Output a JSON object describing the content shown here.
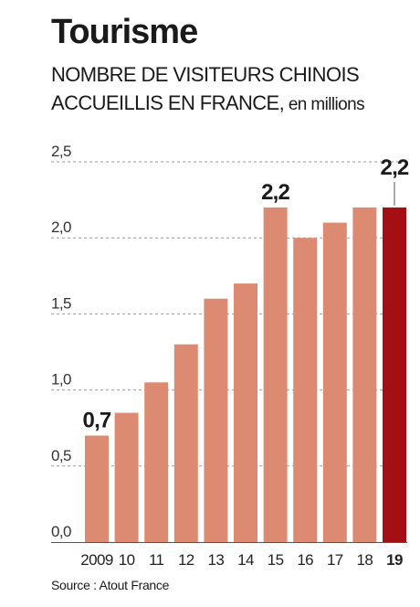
{
  "header": {
    "title": "Tourisme",
    "subtitle_main": "NOMBRE DE VISITEURS CHINOIS ACCUEILLIS EN FRANCE,",
    "subtitle_unit": " en millions"
  },
  "source": "Source : Atout France",
  "colors": {
    "bar": "#dc8a72",
    "highlight": "#a30f12",
    "grid": "#9a9a9a"
  },
  "chart_data": {
    "type": "bar",
    "title": "NOMBRE DE VISITEURS CHINOIS ACCUEILLIS EN FRANCE, en millions",
    "categories": [
      "2009",
      "10",
      "11",
      "12",
      "13",
      "14",
      "15",
      "16",
      "17",
      "18",
      "19"
    ],
    "values": [
      0.7,
      0.85,
      1.05,
      1.3,
      1.6,
      1.7,
      2.2,
      2.0,
      2.1,
      2.2,
      2.2
    ],
    "highlight_index": 10,
    "data_labels": [
      {
        "index": 0,
        "text": "0,7"
      },
      {
        "index": 6,
        "text": "2,2"
      },
      {
        "index": 10,
        "text": "2,2"
      }
    ],
    "yticks": [
      {
        "value": 0,
        "label": "0,0"
      },
      {
        "value": 0.5,
        "label": "0,5"
      },
      {
        "value": 1.0,
        "label": "1,0"
      },
      {
        "value": 1.5,
        "label": "1,5"
      },
      {
        "value": 2.0,
        "label": "2,0"
      },
      {
        "value": 2.5,
        "label": "2,5"
      }
    ],
    "ylim": [
      0,
      2.5
    ],
    "grid": true,
    "xlabel": "",
    "ylabel": ""
  }
}
